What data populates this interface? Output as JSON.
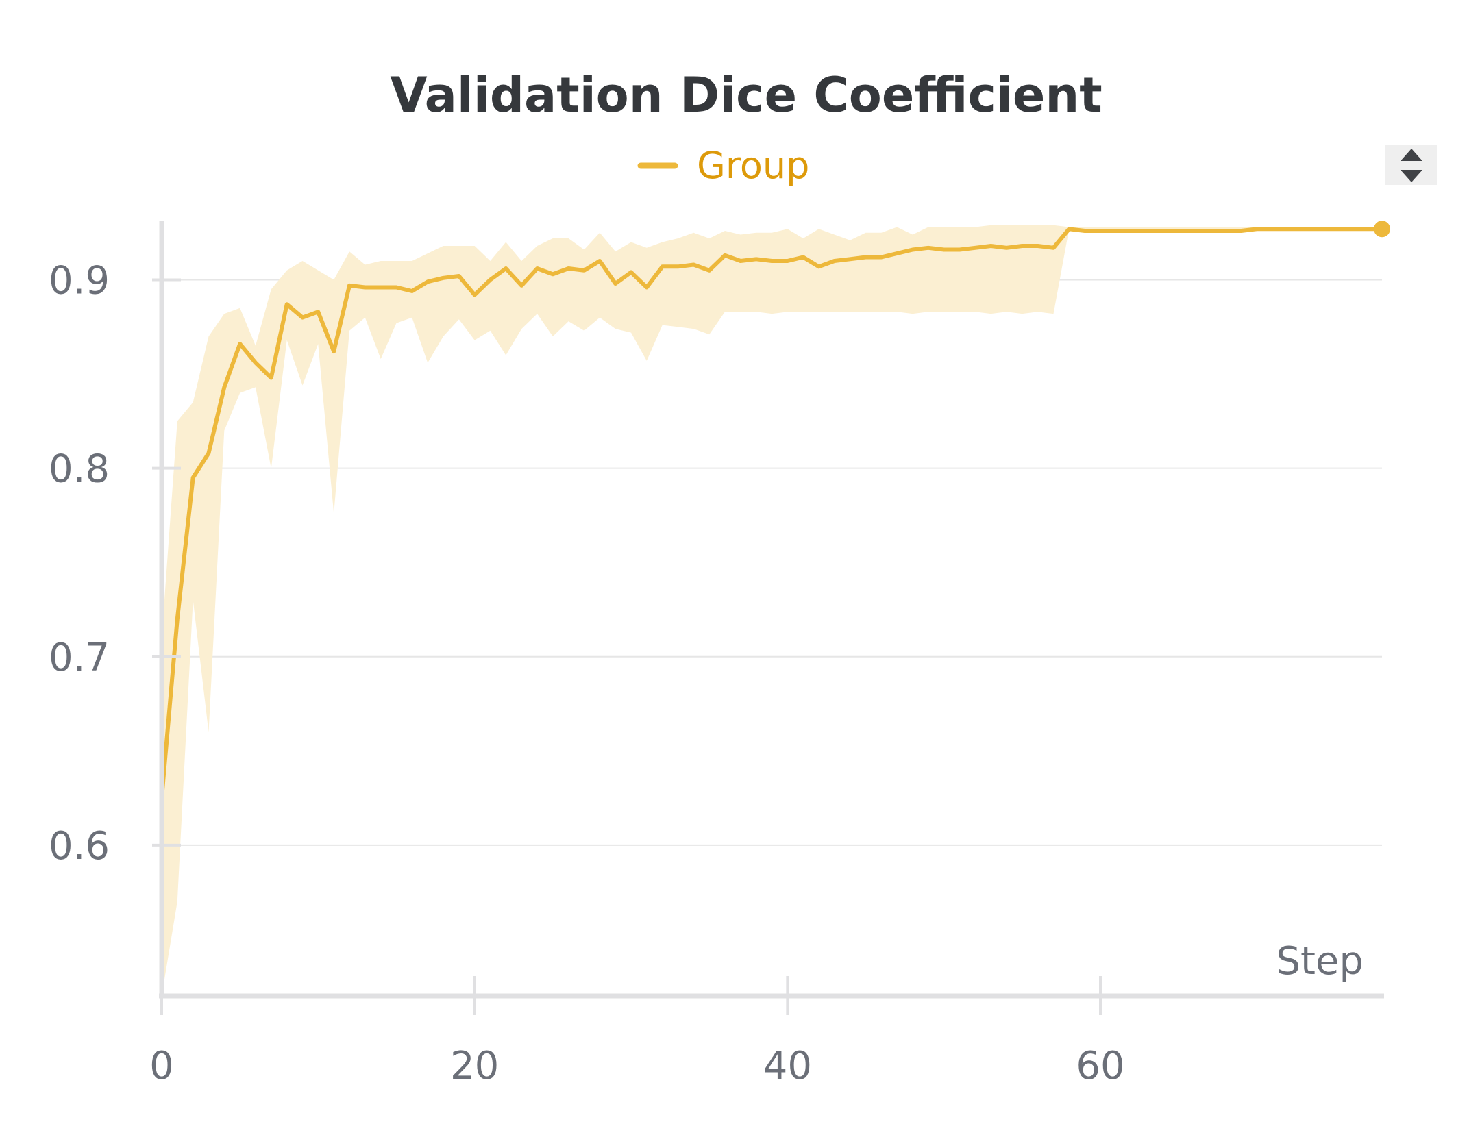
{
  "chart_data": {
    "type": "line",
    "title": "Validation Dice Coefficient",
    "xlabel": "Step",
    "ylabel": "",
    "xlim": [
      0,
      78
    ],
    "ylim": [
      0.52,
      0.93
    ],
    "xticks": [
      0,
      20,
      40,
      60
    ],
    "xtick_labels": [
      "0",
      "20",
      "40",
      "60"
    ],
    "yticks": [
      0.6,
      0.7,
      0.8,
      0.9
    ],
    "ytick_labels": [
      "0.6",
      "0.7",
      "0.8",
      "0.9"
    ],
    "grid": true,
    "legend_position": "top-center",
    "series": [
      {
        "name": "Group",
        "color": "#edb83b",
        "band_color": "#fbefd2",
        "x": [
          0,
          1,
          2,
          3,
          4,
          5,
          6,
          7,
          8,
          9,
          10,
          11,
          12,
          13,
          14,
          15,
          16,
          17,
          18,
          19,
          20,
          21,
          22,
          23,
          24,
          25,
          26,
          27,
          28,
          29,
          30,
          31,
          32,
          33,
          34,
          35,
          36,
          37,
          38,
          39,
          40,
          41,
          42,
          43,
          44,
          45,
          46,
          47,
          48,
          49,
          50,
          51,
          52,
          53,
          54,
          55,
          56,
          57,
          58,
          59,
          60,
          61,
          62,
          63,
          64,
          65,
          66,
          67,
          68,
          69,
          70,
          71,
          72,
          73,
          74,
          75,
          76,
          77,
          78
        ],
        "values": [
          0.625,
          0.72,
          0.795,
          0.808,
          0.843,
          0.866,
          0.856,
          0.848,
          0.887,
          0.88,
          0.883,
          0.862,
          0.897,
          0.896,
          0.896,
          0.896,
          0.894,
          0.899,
          0.901,
          0.902,
          0.892,
          0.9,
          0.906,
          0.897,
          0.906,
          0.903,
          0.906,
          0.905,
          0.91,
          0.898,
          0.904,
          0.896,
          0.907,
          0.907,
          0.908,
          0.905,
          0.913,
          0.91,
          0.911,
          0.91,
          0.91,
          0.912,
          0.907,
          0.91,
          0.911,
          0.912,
          0.912,
          0.914,
          0.916,
          0.917,
          0.916,
          0.916,
          0.917,
          0.918,
          0.917,
          0.918,
          0.918,
          0.917,
          0.927,
          0.926,
          0.926,
          0.926,
          0.926,
          0.926,
          0.926,
          0.926,
          0.926,
          0.926,
          0.926,
          0.926,
          0.927,
          0.927,
          0.927,
          0.927,
          0.927,
          0.927,
          0.927,
          0.927,
          0.927
        ],
        "upper": [
          0.71,
          0.825,
          0.835,
          0.87,
          0.882,
          0.885,
          0.865,
          0.895,
          0.905,
          0.91,
          0.905,
          0.9,
          0.915,
          0.908,
          0.91,
          0.91,
          0.91,
          0.914,
          0.918,
          0.918,
          0.918,
          0.91,
          0.92,
          0.91,
          0.918,
          0.922,
          0.922,
          0.916,
          0.925,
          0.915,
          0.92,
          0.917,
          0.92,
          0.922,
          0.925,
          0.922,
          0.926,
          0.924,
          0.925,
          0.925,
          0.927,
          0.922,
          0.927,
          0.924,
          0.921,
          0.925,
          0.925,
          0.928,
          0.924,
          0.928,
          0.928,
          0.928,
          0.928,
          0.929,
          0.929,
          0.929,
          0.929,
          0.929,
          0.928,
          0.928,
          0.928,
          0.928,
          0.928,
          0.928,
          0.928,
          0.928,
          0.928,
          0.928,
          0.928,
          0.928,
          0.928,
          0.928,
          0.928,
          0.928,
          0.928,
          0.928,
          0.928,
          0.928,
          0.928
        ],
        "lower": [
          0.52,
          0.57,
          0.73,
          0.66,
          0.82,
          0.84,
          0.843,
          0.8,
          0.868,
          0.844,
          0.866,
          0.776,
          0.873,
          0.88,
          0.858,
          0.877,
          0.88,
          0.856,
          0.87,
          0.879,
          0.868,
          0.873,
          0.86,
          0.874,
          0.882,
          0.87,
          0.878,
          0.873,
          0.88,
          0.874,
          0.872,
          0.857,
          0.876,
          0.875,
          0.874,
          0.871,
          0.883,
          0.883,
          0.883,
          0.882,
          0.883,
          0.883,
          0.883,
          0.883,
          0.883,
          0.883,
          0.883,
          0.883,
          0.882,
          0.883,
          0.883,
          0.883,
          0.883,
          0.882,
          0.883,
          0.882,
          0.883,
          0.882,
          0.927,
          0.926,
          0.926,
          0.926,
          0.926,
          0.926,
          0.926,
          0.926,
          0.926,
          0.926,
          0.926,
          0.926,
          0.927,
          0.927,
          0.927,
          0.927,
          0.927,
          0.927,
          0.927,
          0.927,
          0.927
        ]
      }
    ]
  }
}
